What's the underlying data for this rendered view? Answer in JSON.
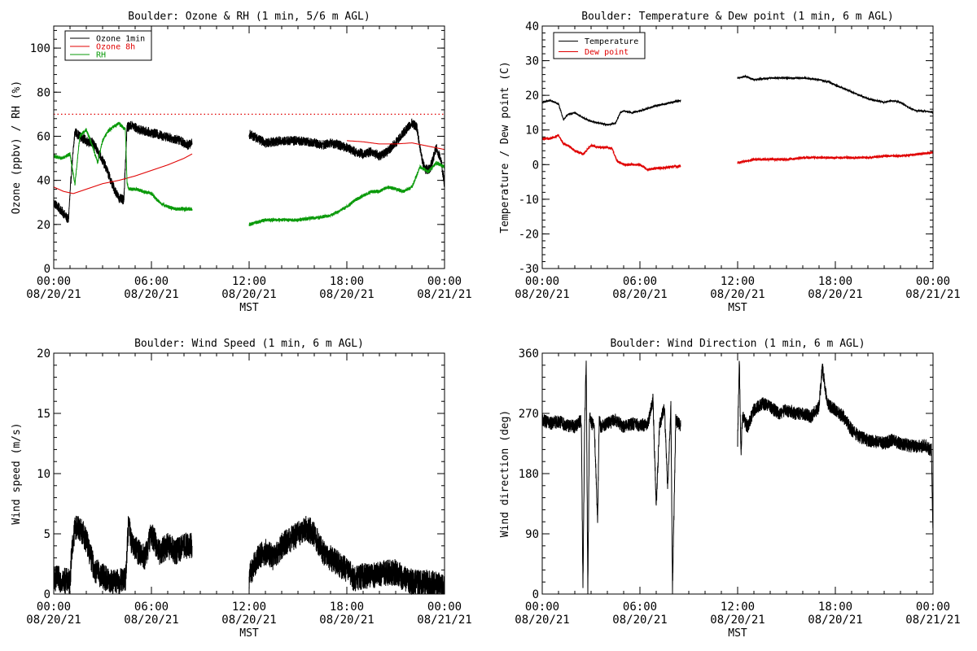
{
  "colors": {
    "black": "#000000",
    "red": "#e00000",
    "green": "#0a9a0a",
    "background": "#ffffff"
  },
  "xaxis": {
    "ticks": [
      0,
      6,
      12,
      18,
      24
    ],
    "tick_labels": [
      [
        "00:00",
        "08/20/21"
      ],
      [
        "06:00",
        "08/20/21"
      ],
      [
        "12:00",
        "08/20/21"
      ],
      [
        "18:00",
        "08/20/21"
      ],
      [
        "00:00",
        "08/21/21"
      ]
    ],
    "label": "MST"
  },
  "chart_data": [
    {
      "type": "line",
      "title": "Boulder: Ozone & RH (1 min, 5/6 m AGL)",
      "xlabel": "MST",
      "ylabel": "Ozone (ppbv) / RH (%)",
      "xlim": [
        0,
        24
      ],
      "ylim": [
        0,
        110
      ],
      "yticks": [
        0,
        20,
        40,
        60,
        80,
        100
      ],
      "legend": "top-left",
      "reference_line": {
        "y": 70,
        "style": "dotted",
        "color": "#e00000"
      },
      "series": [
        {
          "name": "Ozone 1min",
          "color": "#000000",
          "noise": 2.2,
          "segments": [
            {
              "x": [
                0.0,
                0.5,
                0.9,
                1.1,
                1.3,
                1.6,
                2.0,
                2.4,
                2.8,
                3.2,
                3.6,
                4.0,
                4.3,
                4.5,
                4.8,
                5.2,
                5.8,
                6.3,
                6.8,
                7.3,
                7.8,
                8.3,
                8.5
              ],
              "y": [
                30,
                26,
                22,
                45,
                62,
                60,
                58,
                57,
                52,
                46,
                38,
                32,
                31,
                64,
                65,
                63,
                62,
                61,
                60,
                59,
                58,
                56,
                57
              ]
            },
            {
              "x": [
                12.0,
                12.5,
                13.0,
                14.0,
                15.0,
                16.0,
                16.5,
                17.0,
                17.5,
                18.0,
                18.5,
                19.0,
                19.5,
                20.0,
                20.5,
                21.0,
                21.5,
                22.0,
                22.3,
                22.6,
                22.8,
                23.1,
                23.5,
                23.8,
                24.0
              ],
              "y": [
                61,
                59,
                57,
                58,
                58,
                57,
                56,
                57,
                56,
                55,
                53,
                52,
                53,
                51,
                53,
                57,
                62,
                66,
                64,
                50,
                45,
                45,
                55,
                48,
                38
              ]
            }
          ]
        },
        {
          "name": "Ozone 8h",
          "color": "#e00000",
          "noise": 0,
          "segments": [
            {
              "x": [
                0.0,
                0.6,
                1.2,
                2.0,
                3.0,
                4.0,
                5.0,
                6.0,
                7.0,
                8.0,
                8.5
              ],
              "y": [
                37,
                35,
                34,
                36,
                38.5,
                40,
                42,
                44.5,
                47,
                50,
                52
              ]
            },
            {
              "x": [
                18.0,
                19.0,
                20.0,
                21.0,
                22.0,
                23.0,
                24.0
              ],
              "y": [
                58,
                57.5,
                56.5,
                56.5,
                57,
                55.5,
                54
              ]
            }
          ]
        },
        {
          "name": "RH",
          "color": "#0a9a0a",
          "noise": 0.8,
          "segments": [
            {
              "x": [
                0.0,
                0.5,
                1.0,
                1.3,
                1.6,
                2.0,
                2.4,
                2.7,
                3.0,
                3.3,
                3.6,
                4.0,
                4.4,
                4.5,
                4.6,
                5.0,
                5.5,
                6.0,
                6.5,
                7.0,
                7.5,
                8.0,
                8.5
              ],
              "y": [
                51,
                50,
                52,
                38,
                60,
                63,
                55,
                48,
                58,
                62,
                64,
                66,
                63,
                39,
                36,
                36,
                35,
                34,
                30,
                28,
                27,
                27,
                27
              ]
            },
            {
              "x": [
                12.0,
                13.0,
                14.0,
                15.0,
                16.0,
                17.0,
                17.5,
                18.0,
                18.5,
                19.0,
                19.5,
                20.0,
                20.5,
                21.0,
                21.5,
                22.0,
                22.5,
                23.0,
                23.5,
                24.0
              ],
              "y": [
                20,
                22,
                22,
                22,
                23,
                24,
                26,
                28,
                31,
                33,
                35,
                35,
                37,
                36,
                35,
                37,
                46,
                44,
                48,
                46
              ]
            }
          ]
        }
      ]
    },
    {
      "type": "line",
      "title": "Boulder: Temperature & Dew point (1 min, 6 m AGL)",
      "xlabel": "MST",
      "ylabel": "Temperature / Dew point (C)",
      "xlim": [
        0,
        24
      ],
      "ylim": [
        -30,
        40
      ],
      "yticks": [
        -30,
        -20,
        -10,
        0,
        10,
        20,
        30,
        40
      ],
      "legend": "top-left",
      "series": [
        {
          "name": "Temperature",
          "color": "#000000",
          "noise": 0.25,
          "segments": [
            {
              "x": [
                0.0,
                0.5,
                1.0,
                1.3,
                1.6,
                2.0,
                2.5,
                3.0,
                3.5,
                4.0,
                4.5,
                4.8,
                5.0,
                5.5,
                6.0,
                7.0,
                8.0,
                8.5
              ],
              "y": [
                18,
                18.5,
                17.5,
                13,
                14.5,
                15,
                13.5,
                12.5,
                12,
                11.5,
                12,
                15,
                15.5,
                15,
                15.5,
                17,
                18,
                18.5
              ]
            },
            {
              "x": [
                12.0,
                12.5,
                13.0,
                14.0,
                15.0,
                16.0,
                17.0,
                17.5,
                18.0,
                19.0,
                20.0,
                20.5,
                21.0,
                21.5,
                22.0,
                22.5,
                23.0,
                23.5,
                24.0
              ],
              "y": [
                25,
                25.5,
                24.5,
                25,
                25,
                25,
                24.5,
                24,
                23,
                21,
                19,
                18.5,
                18,
                18.5,
                18,
                16.5,
                15.5,
                15.5,
                15
              ]
            }
          ]
        },
        {
          "name": "Dew point",
          "color": "#e00000",
          "noise": 0.35,
          "segments": [
            {
              "x": [
                0.0,
                0.5,
                1.0,
                1.3,
                1.6,
                2.0,
                2.5,
                3.0,
                3.5,
                4.0,
                4.3,
                4.6,
                5.0,
                5.5,
                6.0,
                6.5,
                7.0,
                7.5,
                8.0,
                8.5
              ],
              "y": [
                7.5,
                7.5,
                8.5,
                6,
                5.5,
                4,
                3,
                5.5,
                5,
                5,
                4.5,
                1,
                0,
                0,
                0,
                -1.5,
                -1,
                -1,
                -0.5,
                -0.5
              ]
            },
            {
              "x": [
                12.0,
                13.0,
                14.0,
                15.0,
                16.0,
                17.0,
                18.0,
                19.0,
                20.0,
                21.0,
                22.0,
                23.0,
                24.0
              ],
              "y": [
                0.5,
                1.5,
                1.5,
                1.5,
                2,
                2,
                2,
                2,
                2,
                2.5,
                2.5,
                3,
                3.5
              ]
            }
          ]
        }
      ]
    },
    {
      "type": "line",
      "title": "Boulder: Wind Speed (1 min, 6 m AGL)",
      "xlabel": "MST",
      "ylabel": "Wind speed (m/s)",
      "xlim": [
        0,
        24
      ],
      "ylim": [
        0,
        20
      ],
      "yticks": [
        0,
        5,
        10,
        15,
        20
      ],
      "series": [
        {
          "name": "",
          "color": "#000000",
          "noise": 1.1,
          "segments": [
            {
              "x": [
                0.0,
                0.5,
                1.0,
                1.1,
                1.3,
                1.6,
                2.0,
                2.5,
                3.0,
                3.5,
                4.0,
                4.4,
                4.6,
                4.8,
                5.2,
                5.6,
                6.0,
                6.5,
                7.0,
                7.5,
                8.0,
                8.5
              ],
              "y": [
                1.3,
                1.2,
                1.0,
                3.5,
                5.5,
                5.5,
                4.5,
                2,
                1.5,
                1,
                1,
                1.2,
                6,
                4,
                3.5,
                3,
                5,
                3.5,
                4,
                3.5,
                4,
                4
              ]
            },
            {
              "x": [
                12.0,
                12.5,
                13.0,
                13.5,
                14.0,
                14.5,
                15.0,
                15.5,
                16.0,
                16.5,
                17.0,
                17.5,
                18.0,
                18.5,
                19.0,
                19.5,
                20.0,
                20.5,
                21.0,
                21.5,
                22.0,
                22.5,
                23.0,
                23.5,
                24.0
              ],
              "y": [
                1.5,
                3,
                3.5,
                3,
                4,
                4.5,
                5,
                5.5,
                5,
                3.5,
                3,
                2.5,
                2,
                1.2,
                1.5,
                1.5,
                1.6,
                1.8,
                1.8,
                1.3,
                1.0,
                0.9,
                0.9,
                0.8,
                0.6
              ]
            }
          ]
        }
      ]
    },
    {
      "type": "line",
      "title": "Boulder: Wind Direction (1 min, 6 m AGL)",
      "xlabel": "MST",
      "ylabel": "Wind direction (deg)",
      "xlim": [
        0,
        24
      ],
      "ylim": [
        0,
        360
      ],
      "yticks": [
        0,
        90,
        180,
        270,
        360
      ],
      "series": [
        {
          "name": "",
          "color": "#000000",
          "noise": 10,
          "segments": [
            {
              "x": [
                0.0,
                0.5,
                1.0,
                1.5,
                2.0,
                2.4,
                2.5,
                2.6,
                2.7,
                2.8,
                2.9,
                3.0,
                3.2,
                3.4,
                3.5,
                3.6,
                4.0,
                4.5,
                5.0,
                5.5,
                6.0,
                6.5,
                6.8,
                7.0,
                7.2,
                7.5,
                7.7,
                7.9,
                8.0,
                8.2,
                8.5
              ],
              "y": [
                260,
                255,
                258,
                252,
                250,
                260,
                5,
                250,
                350,
                0,
                270,
                258,
                250,
                110,
                260,
                250,
                255,
                260,
                250,
                255,
                252,
                255,
                290,
                130,
                250,
                280,
                160,
                280,
                8,
                260,
                250
              ]
            },
            {
              "x": [
                12.0,
                12.1,
                12.2,
                12.3,
                12.6,
                13.0,
                13.5,
                14.0,
                14.5,
                15.0,
                15.5,
                16.0,
                16.5,
                17.0,
                17.2,
                17.5,
                18.0,
                18.5,
                19.0,
                19.5,
                20.0,
                20.5,
                21.0,
                21.5,
                22.0,
                22.5,
                23.0,
                23.5,
                23.9,
                24.0
              ],
              "y": [
                230,
                355,
                210,
                265,
                250,
                275,
                285,
                280,
                270,
                275,
                270,
                270,
                265,
                280,
                340,
                285,
                275,
                265,
                245,
                235,
                230,
                228,
                225,
                230,
                225,
                222,
                220,
                222,
                215,
                80
              ]
            }
          ]
        }
      ]
    }
  ]
}
